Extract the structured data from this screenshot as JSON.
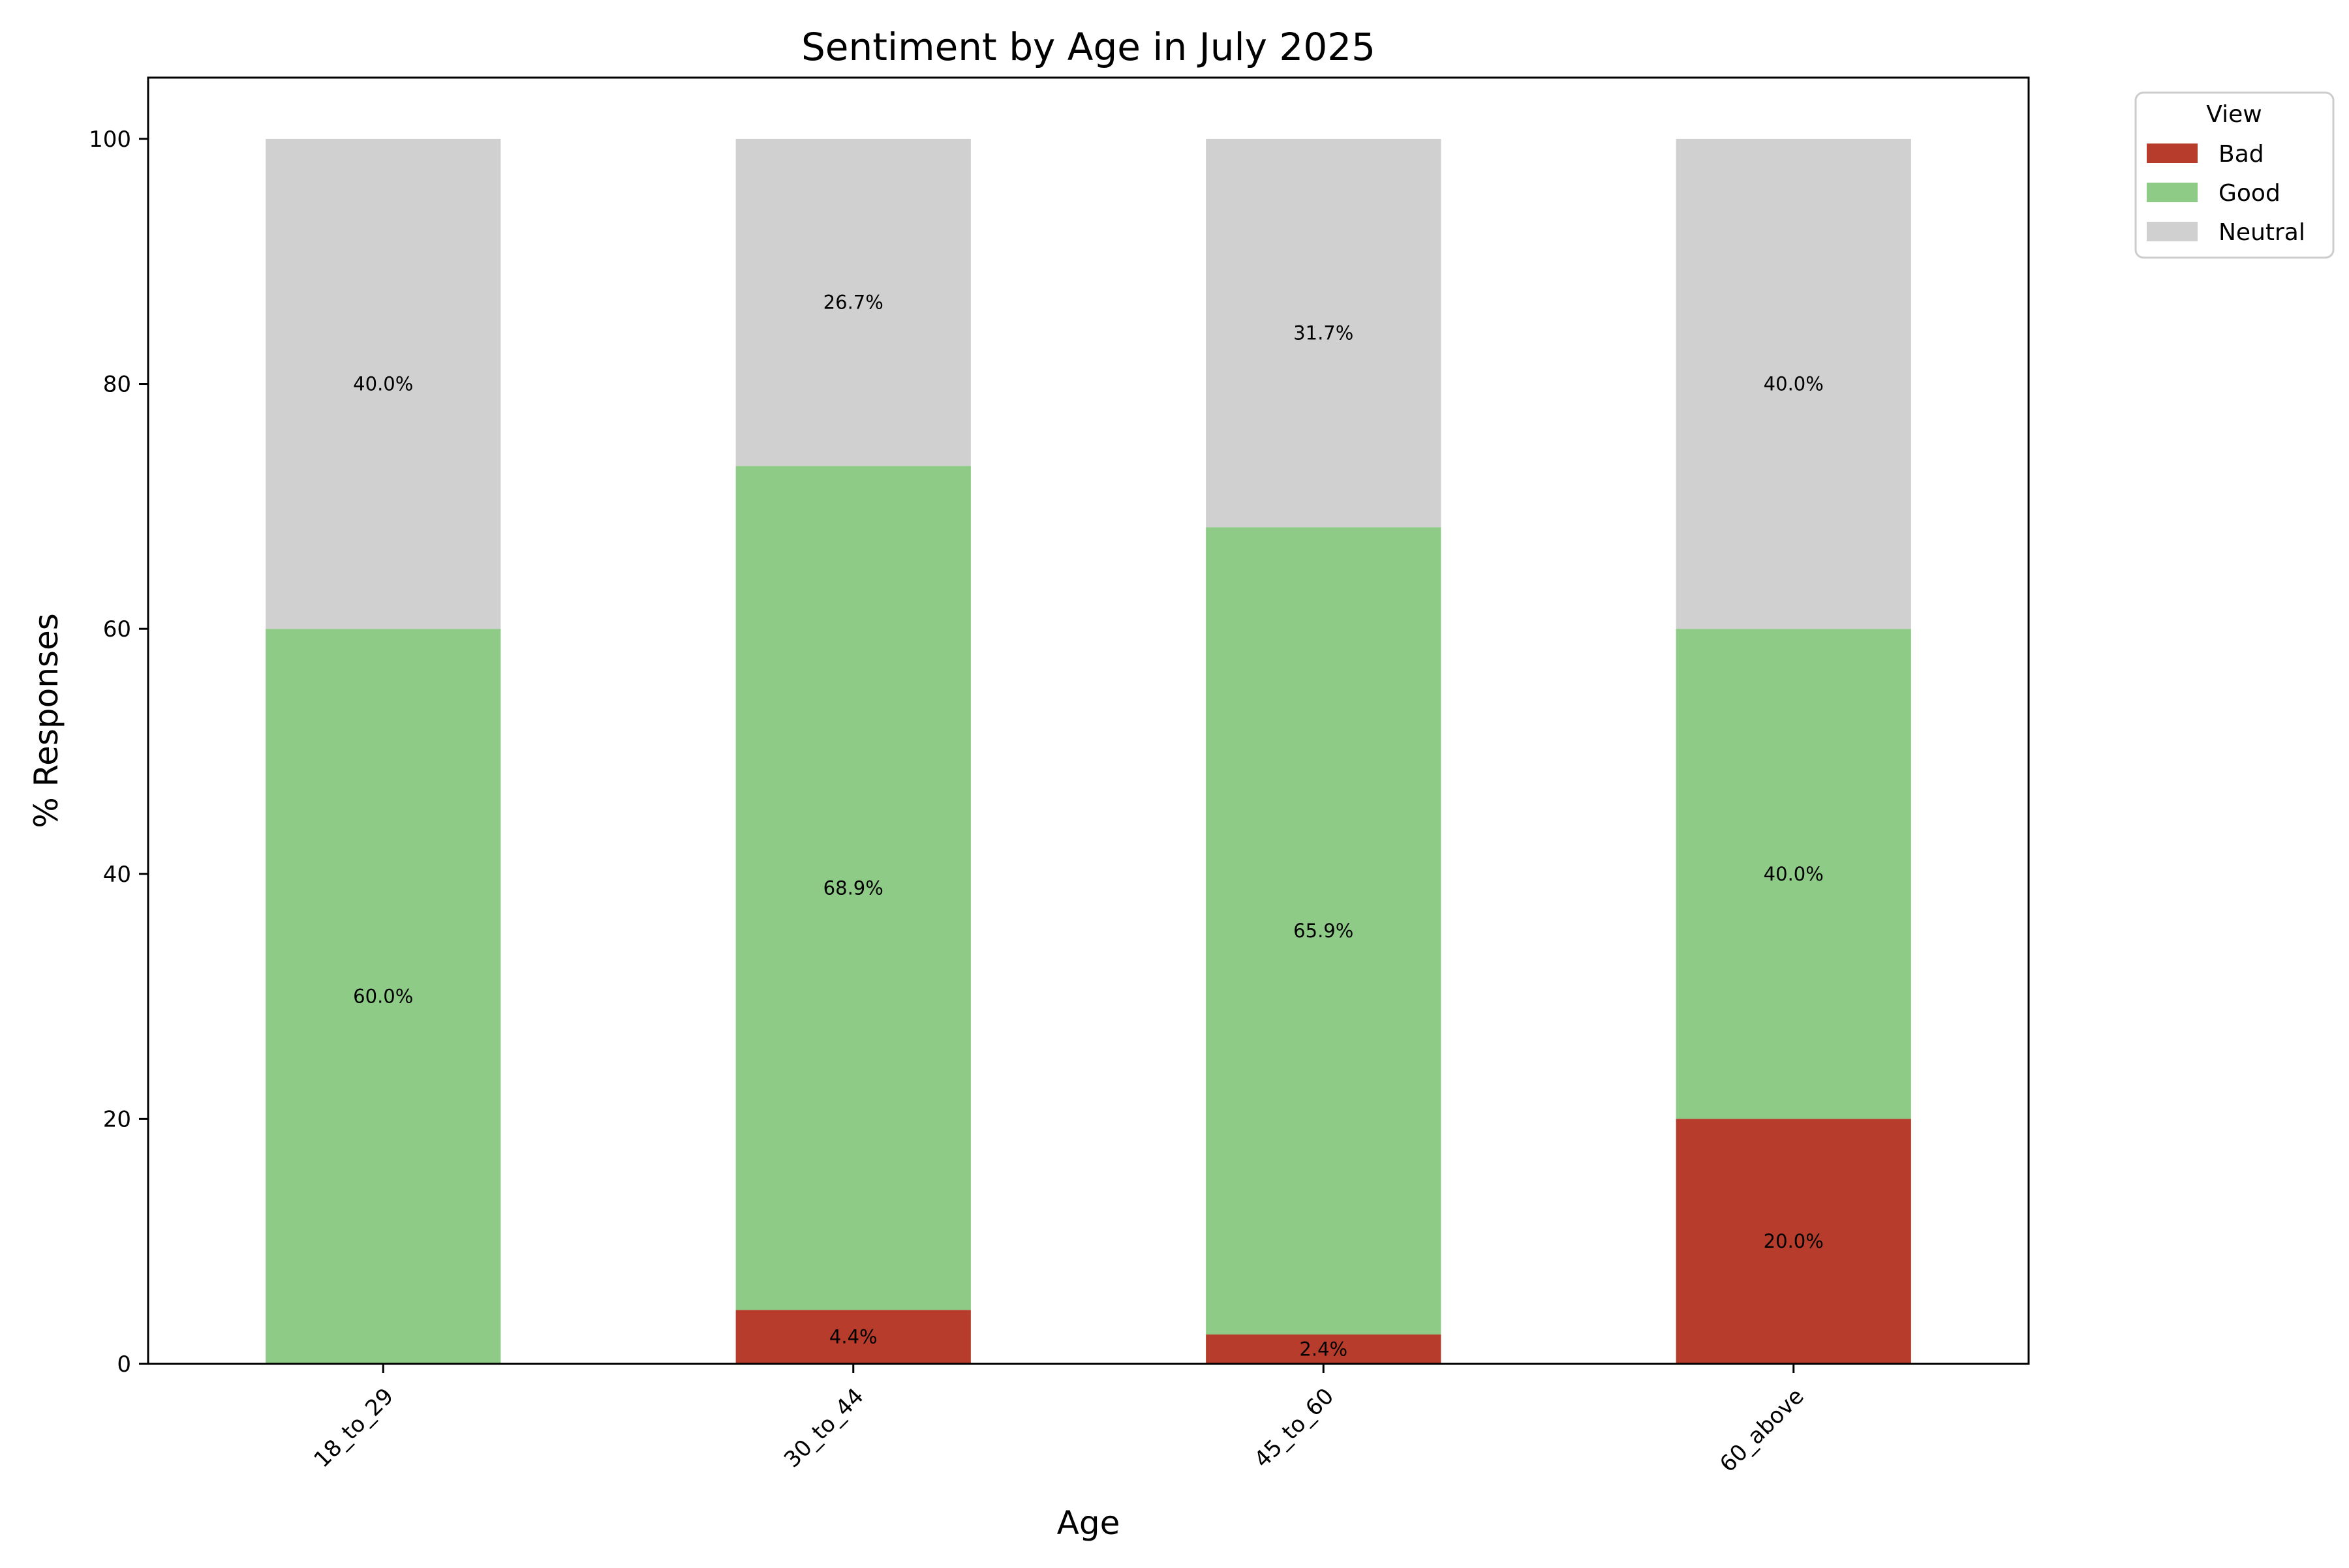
{
  "chart_data": {
    "type": "bar",
    "stacked": true,
    "title": "Sentiment by Age in July 2025",
    "xlabel": "Age",
    "ylabel": "% Responses",
    "categories": [
      "18_to_29",
      "30_to_44",
      "45_to_60",
      "60_above"
    ],
    "series": [
      {
        "name": "Bad",
        "values": [
          0.0,
          4.4,
          2.4,
          20.0
        ],
        "labels": [
          "",
          "4.4%",
          "2.4%",
          "20.0%"
        ],
        "color": "#b83c2b"
      },
      {
        "name": "Good",
        "values": [
          60.0,
          68.9,
          65.9,
          40.0
        ],
        "labels": [
          "60.0%",
          "68.9%",
          "65.9%",
          "40.0%"
        ],
        "color": "#8dcb86"
      },
      {
        "name": "Neutral",
        "values": [
          40.0,
          26.7,
          31.7,
          40.0
        ],
        "labels": [
          "40.0%",
          "26.7%",
          "31.7%",
          "40.0%"
        ],
        "color": "#d1d0d1"
      }
    ],
    "ylim": [
      0,
      105
    ],
    "yticks": [
      0,
      20,
      40,
      60,
      80,
      100
    ],
    "legend": {
      "title": "View",
      "placement": "outside-top-right"
    },
    "grid": false
  }
}
